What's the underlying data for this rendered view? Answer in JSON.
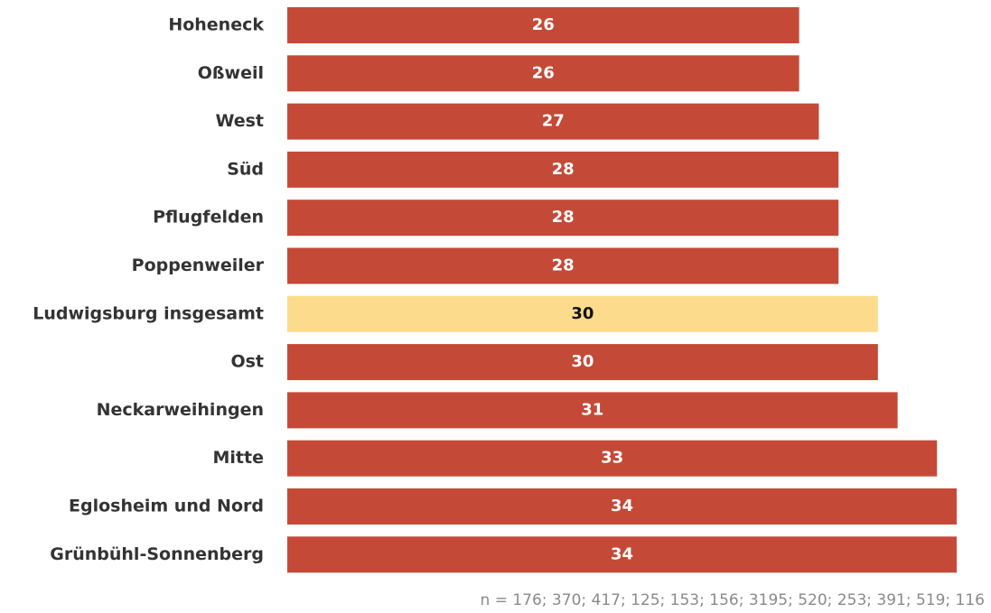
{
  "chart_data": {
    "type": "barh",
    "categories": [
      "Hoheneck",
      "Oßweil",
      "West",
      "Süd",
      "Pflugfelden",
      "Poppenweiler",
      "Ludwigsburg insgesamt",
      "Ost",
      "Neckarweihingen",
      "Mitte",
      "Eglosheim und Nord",
      "Grünbühl-Sonnenberg"
    ],
    "values": [
      26,
      26,
      27,
      28,
      28,
      28,
      30,
      30,
      31,
      33,
      34,
      34
    ],
    "colors": [
      "#c44a37",
      "#c44a37",
      "#c44a37",
      "#c44a37",
      "#c44a37",
      "#c44a37",
      "#fddb8c",
      "#c44a37",
      "#c44a37",
      "#c44a37",
      "#c44a37",
      "#c44a37"
    ],
    "label_colors": [
      "#ffffff",
      "#ffffff",
      "#ffffff",
      "#ffffff",
      "#ffffff",
      "#ffffff",
      "#111111",
      "#ffffff",
      "#ffffff",
      "#ffffff",
      "#ffffff",
      "#ffffff"
    ],
    "note": "n = 176; 370; 417; 125; 153; 156; 3195; 520; 253; 391; 519; 116"
  }
}
